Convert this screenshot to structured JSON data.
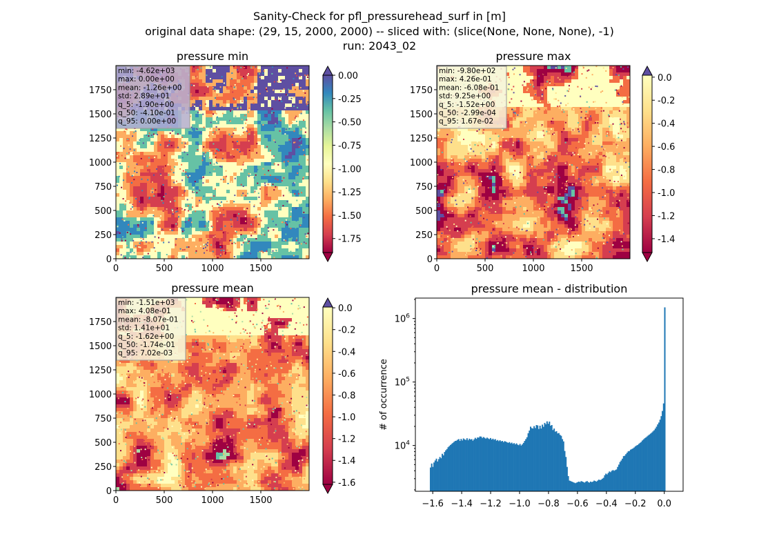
{
  "figure": {
    "title_line1": "Sanity-Check for pfl_pressurehead_surf in [m]",
    "title_line2": "original data shape: (29, 15, 2000, 2000) -- sliced with: (slice(None, None, None), -1)",
    "title_line3": "run: 2043_02"
  },
  "chart_data": [
    {
      "type": "heatmap",
      "title": "pressure min",
      "xlim": [
        0,
        2000
      ],
      "ylim": [
        0,
        2000
      ],
      "xticks": [
        "0",
        "500",
        "1000",
        "1500"
      ],
      "yticks": [
        "0",
        "250",
        "500",
        "750",
        "1000",
        "1250",
        "1500",
        "1750"
      ],
      "colorbar": {
        "vmin": -1.9,
        "vmax": 0.0,
        "extend": "both",
        "ticks": [
          "0.00",
          "-0.25",
          "-0.50",
          "-0.75",
          "-1.00",
          "-1.25",
          "-1.50",
          "-1.75"
        ]
      },
      "stats": [
        "min: -4.62e+03",
        "max: 0.00e+00",
        "mean: -1.26e+00",
        "std: 2.89e+01",
        "q_5: -1.90e+00",
        "q_50: -4.10e-01",
        "q_95: 0.00e+00"
      ]
    },
    {
      "type": "heatmap",
      "title": "pressure max",
      "xlim": [
        0,
        2000
      ],
      "ylim": [
        0,
        2000
      ],
      "xticks": [
        "0",
        "500",
        "1000",
        "1500"
      ],
      "yticks": [
        "0",
        "250",
        "500",
        "750",
        "1000",
        "1250",
        "1500",
        "1750"
      ],
      "colorbar": {
        "vmin": -1.52,
        "vmax": 0.0167,
        "extend": "both",
        "ticks": [
          "0.0",
          "-0.2",
          "-0.4",
          "-0.6",
          "-0.8",
          "-1.0",
          "-1.2",
          "-1.4"
        ]
      },
      "stats": [
        "min: -9.80e+02",
        "max: 4.26e-01",
        "mean: -6.08e-01",
        "std: 9.25e+00",
        "q_5: -1.52e+00",
        "q_50: -2.99e-04",
        "q_95: 1.67e-02"
      ]
    },
    {
      "type": "heatmap",
      "title": "pressure mean",
      "xlim": [
        0,
        2000
      ],
      "ylim": [
        0,
        2000
      ],
      "xticks": [
        "0",
        "500",
        "1000",
        "1500"
      ],
      "yticks": [
        "0",
        "250",
        "500",
        "750",
        "1000",
        "1250",
        "1500",
        "1750"
      ],
      "colorbar": {
        "vmin": -1.62,
        "vmax": 0.007,
        "extend": "both",
        "ticks": [
          "0.0",
          "-0.2",
          "-0.4",
          "-0.6",
          "-0.8",
          "-1.0",
          "-1.2",
          "-1.4",
          "-1.6"
        ]
      },
      "stats": [
        "min: -1.51e+03",
        "max: 4.08e-01",
        "mean: -8.07e-01",
        "std: 1.41e+01",
        "q_5: -1.62e+00",
        "q_50: -1.74e-01",
        "q_95: 7.02e-03"
      ]
    },
    {
      "type": "bar",
      "title": "pressure mean - distribution",
      "ylabel": "# of occurrence",
      "yscale": "log",
      "xlim": [
        -1.72,
        0.13
      ],
      "ylim": [
        1900,
        2100000
      ],
      "xticks": [
        "-1.6",
        "-1.4",
        "-1.2",
        "-1.0",
        "-0.8",
        "-0.6",
        "-0.4",
        "-0.2",
        "0.0"
      ],
      "yticks": [
        "10^4",
        "10^5",
        "10^6"
      ],
      "color": "#1f77b4",
      "bin_range": [
        -1.62,
        0.007
      ],
      "bins": 200,
      "counts": [
        4500,
        5200,
        4600,
        5400,
        5800,
        6200,
        5600,
        6100,
        6600,
        6300,
        7400,
        7000,
        7900,
        8400,
        8800,
        9400,
        9800,
        10200,
        10600,
        11000,
        11400,
        11800,
        11900,
        12300,
        12600,
        11800,
        12700,
        12000,
        12900,
        12500,
        12200,
        13000,
        12100,
        12800,
        12400,
        12600,
        11900,
        12500,
        13200,
        12700,
        13400,
        13300,
        13900,
        13800,
        13100,
        13600,
        13200,
        12800,
        13300,
        12900,
        12600,
        13100,
        12400,
        12800,
        12300,
        12600,
        11900,
        12200,
        11700,
        12100,
        11600,
        11800,
        11300,
        11700,
        11500,
        11200,
        11000,
        11300,
        10800,
        11100,
        10600,
        10900,
        10400,
        10800,
        10300,
        10100,
        10600,
        10000,
        10400,
        11000,
        11800,
        12600,
        13500,
        15600,
        17200,
        19800,
        18800,
        18500,
        20200,
        18800,
        21000,
        20700,
        18200,
        20500,
        18500,
        21300,
        19700,
        22700,
        21600,
        24000,
        22000,
        23800,
        20500,
        21000,
        17500,
        18500,
        16500,
        16800,
        15500,
        15700,
        14700,
        14200,
        12600,
        11600,
        8200,
        6600,
        4600,
        3300,
        2800,
        2750,
        2700,
        2650,
        2600,
        2550,
        2600,
        2650,
        2700,
        2650,
        2750,
        2700,
        2650,
        2600,
        2700,
        2750,
        2650,
        2600,
        2700,
        2650,
        2700,
        2800,
        2750,
        2700,
        2800,
        2900,
        2850,
        2900,
        3000,
        3100,
        3400,
        3600,
        3500,
        3700,
        3900,
        3800,
        4000,
        4100,
        4000,
        4100,
        4200,
        4600,
        5000,
        5500,
        5800,
        6200,
        6800,
        6900,
        7300,
        7700,
        8100,
        8200,
        8600,
        8800,
        9000,
        9300,
        9700,
        10000,
        10200,
        10600,
        11000,
        11400,
        12000,
        12500,
        13000,
        13400,
        13900,
        14400,
        14900,
        15400,
        16000,
        16700,
        17400,
        18500,
        19800,
        21500,
        23000,
        25500,
        29000,
        35000,
        46000,
        1500000
      ]
    }
  ]
}
